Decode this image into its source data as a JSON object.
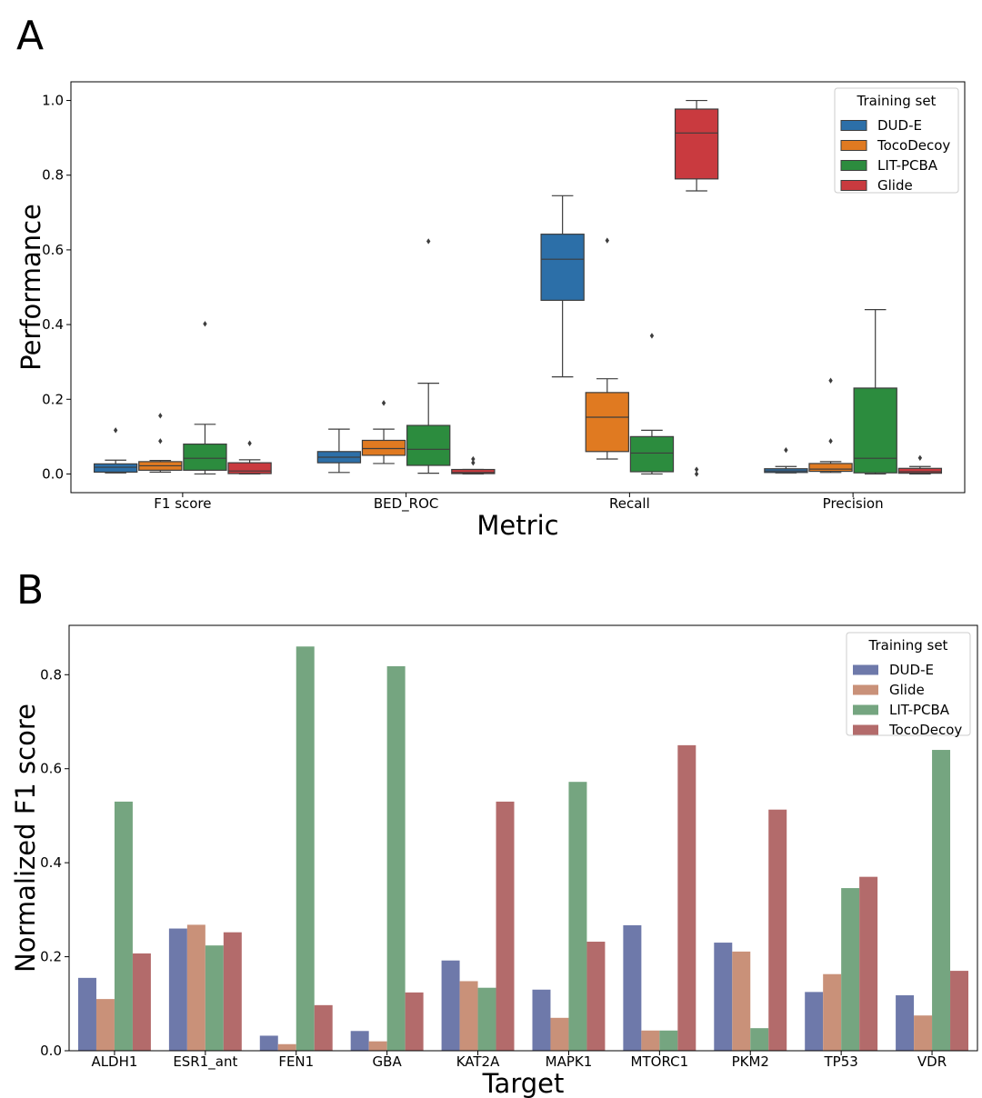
{
  "panel_labels": [
    "A",
    "B"
  ],
  "chart_data": [
    {
      "type": "box",
      "panel": "A",
      "xlabel": "Metric",
      "ylabel": "Performance",
      "categories": [
        "F1 score",
        "BED_ROC",
        "Recall",
        "Precision"
      ],
      "yticks": [
        "0.0",
        "0.2",
        "0.4",
        "0.6",
        "0.8",
        "1.0"
      ],
      "ylim": [
        -0.05,
        1.05
      ],
      "grid": false,
      "legend": {
        "title": "Training set",
        "position": "top-right"
      },
      "series": [
        {
          "name": "DUD-E",
          "color": "#2c6fa8",
          "boxes": [
            {
              "whislo": 0.003,
              "q1": 0.005,
              "med": 0.018,
              "q3": 0.027,
              "whishi": 0.037,
              "fliers": [
                0.117
              ]
            },
            {
              "whislo": 0.004,
              "q1": 0.03,
              "med": 0.045,
              "q3": 0.06,
              "whishi": 0.12,
              "fliers": []
            },
            {
              "whislo": 0.26,
              "q1": 0.465,
              "med": 0.575,
              "q3": 0.642,
              "whishi": 0.745,
              "fliers": []
            },
            {
              "whislo": 0.003,
              "q1": 0.004,
              "med": 0.008,
              "q3": 0.014,
              "whishi": 0.02,
              "fliers": [
                0.064
              ]
            }
          ]
        },
        {
          "name": "TocoDecoy",
          "color": "#e07a21",
          "boxes": [
            {
              "whislo": 0.005,
              "q1": 0.01,
              "med": 0.022,
              "q3": 0.033,
              "whishi": 0.036,
              "fliers": [
                0.088,
                0.156
              ]
            },
            {
              "whislo": 0.028,
              "q1": 0.05,
              "med": 0.068,
              "q3": 0.09,
              "whishi": 0.12,
              "fliers": [
                0.19
              ]
            },
            {
              "whislo": 0.04,
              "q1": 0.06,
              "med": 0.152,
              "q3": 0.218,
              "whishi": 0.255,
              "fliers": [
                0.625
              ]
            },
            {
              "whislo": 0.004,
              "q1": 0.007,
              "med": 0.013,
              "q3": 0.028,
              "whishi": 0.033,
              "fliers": [
                0.088,
                0.25
              ]
            }
          ]
        },
        {
          "name": "LIT-PCBA",
          "color": "#2c8c3e",
          "boxes": [
            {
              "whislo": 0.0,
              "q1": 0.01,
              "med": 0.042,
              "q3": 0.08,
              "whishi": 0.133,
              "fliers": [
                0.402
              ]
            },
            {
              "whislo": 0.002,
              "q1": 0.023,
              "med": 0.066,
              "q3": 0.13,
              "whishi": 0.243,
              "fliers": [
                0.623
              ]
            },
            {
              "whislo": 0.0,
              "q1": 0.006,
              "med": 0.056,
              "q3": 0.1,
              "whishi": 0.117,
              "fliers": [
                0.37
              ]
            },
            {
              "whislo": 0.0,
              "q1": 0.003,
              "med": 0.042,
              "q3": 0.23,
              "whishi": 0.44,
              "fliers": []
            }
          ]
        },
        {
          "name": "Glide",
          "color": "#c93a3f",
          "boxes": [
            {
              "whislo": 0.0,
              "q1": 0.001,
              "med": 0.008,
              "q3": 0.03,
              "whishi": 0.038,
              "fliers": [
                0.082
              ]
            },
            {
              "whislo": 0.0,
              "q1": 0.001,
              "med": 0.004,
              "q3": 0.012,
              "whishi": 0.012,
              "fliers": [
                0.03,
                0.04
              ]
            },
            {
              "whislo": 0.758,
              "q1": 0.79,
              "med": 0.913,
              "q3": 0.977,
              "whishi": 1.0,
              "fliers": [
                0.0,
                0.012
              ]
            },
            {
              "whislo": 0.0,
              "q1": 0.002,
              "med": 0.006,
              "q3": 0.015,
              "whishi": 0.02,
              "fliers": [
                0.043
              ]
            }
          ]
        }
      ]
    },
    {
      "type": "bar",
      "panel": "B",
      "xlabel": "Target",
      "ylabel": "Normalized F1 score",
      "categories": [
        "ALDH1",
        "ESR1_ant",
        "FEN1",
        "GBA",
        "KAT2A",
        "MAPK1",
        "MTORC1",
        "PKM2",
        "TP53",
        "VDR"
      ],
      "yticks": [
        "0.0",
        "0.2",
        "0.4",
        "0.6",
        "0.8"
      ],
      "ylim": [
        0,
        0.905
      ],
      "grid": false,
      "legend": {
        "title": "Training set",
        "position": "top-right"
      },
      "series": [
        {
          "name": "DUD-E",
          "color": "#6e79aa",
          "values": [
            0.155,
            0.26,
            0.032,
            0.042,
            0.192,
            0.13,
            0.267,
            0.23,
            0.125,
            0.118
          ]
        },
        {
          "name": "Glide",
          "color": "#c99179",
          "values": [
            0.11,
            0.268,
            0.014,
            0.02,
            0.148,
            0.07,
            0.043,
            0.211,
            0.163,
            0.075
          ]
        },
        {
          "name": "LIT-PCBA",
          "color": "#75a580",
          "values": [
            0.53,
            0.224,
            0.86,
            0.818,
            0.134,
            0.572,
            0.043,
            0.048,
            0.346,
            0.64
          ]
        },
        {
          "name": "TocoDecoy",
          "color": "#b36b6b",
          "values": [
            0.207,
            0.252,
            0.097,
            0.124,
            0.53,
            0.232,
            0.65,
            0.513,
            0.37,
            0.17
          ]
        }
      ]
    }
  ]
}
